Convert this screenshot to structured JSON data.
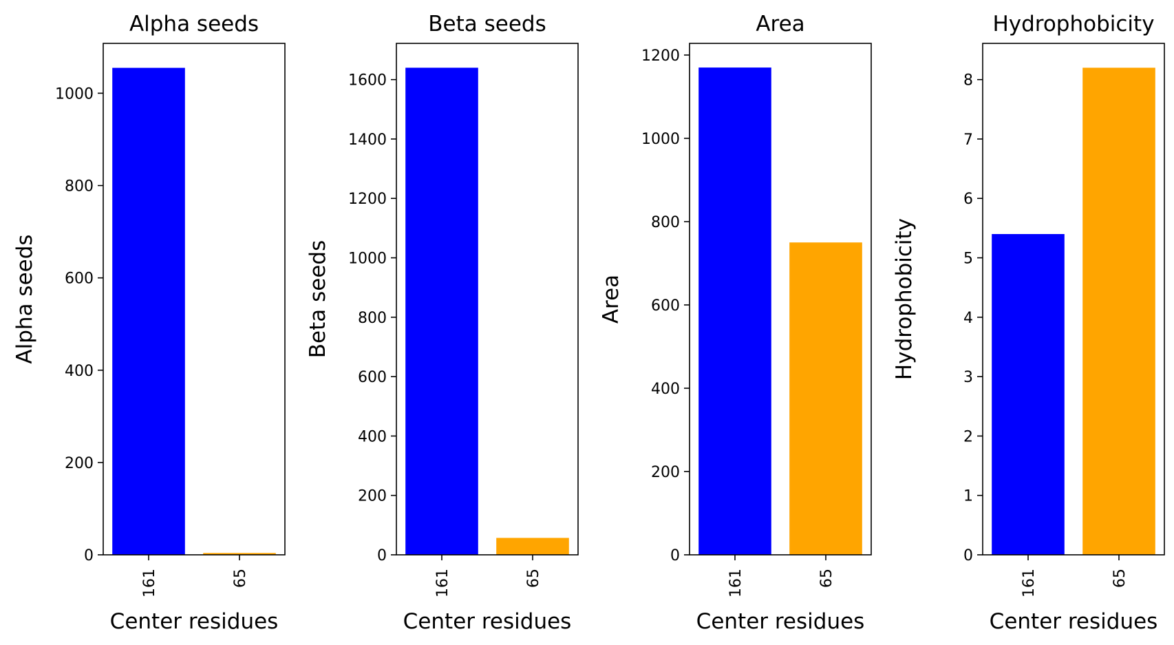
{
  "chart_data": [
    {
      "type": "bar",
      "title": "Alpha seeds",
      "xlabel": "Center residues",
      "ylabel": "Alpha seeds",
      "categories": [
        "161",
        "65"
      ],
      "values": [
        1055,
        4
      ],
      "colors": [
        "#0000ff",
        "#ffa500"
      ],
      "ylim": [
        0,
        1108
      ],
      "yticks": [
        0,
        200,
        400,
        600,
        800,
        1000
      ]
    },
    {
      "type": "bar",
      "title": "Beta seeds",
      "xlabel": "Center residues",
      "ylabel": "Beta seeds",
      "categories": [
        "161",
        "65"
      ],
      "values": [
        1640,
        57
      ],
      "colors": [
        "#0000ff",
        "#ffa500"
      ],
      "ylim": [
        0,
        1722
      ],
      "yticks": [
        0,
        200,
        400,
        600,
        800,
        1000,
        1200,
        1400,
        1600
      ]
    },
    {
      "type": "bar",
      "title": "Area",
      "xlabel": "Center residues",
      "ylabel": "Area",
      "categories": [
        "161",
        "65"
      ],
      "values": [
        1170,
        750
      ],
      "colors": [
        "#0000ff",
        "#ffa500"
      ],
      "ylim": [
        0,
        1228
      ],
      "yticks": [
        0,
        200,
        400,
        600,
        800,
        1000,
        1200
      ]
    },
    {
      "type": "bar",
      "title": "Hydrophobicity",
      "xlabel": "Center residues",
      "ylabel": "Hydrophobicity",
      "categories": [
        "161",
        "65"
      ],
      "values": [
        5.4,
        8.2
      ],
      "colors": [
        "#0000ff",
        "#ffa500"
      ],
      "ylim": [
        0,
        8.61
      ],
      "yticks": [
        0,
        1,
        2,
        3,
        4,
        5,
        6,
        7,
        8
      ]
    }
  ]
}
